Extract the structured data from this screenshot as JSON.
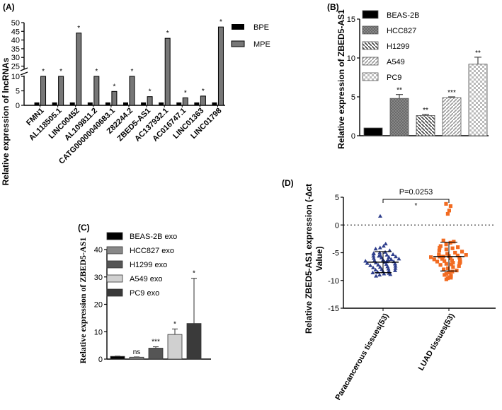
{
  "chart_data": [
    {
      "panel": "(A)",
      "type": "bar",
      "ylabel": "Relative expression of lncRNAs",
      "categories": [
        "FMN1",
        "AL118505.1",
        "LINC00452",
        "AL109811.2",
        "CATG00000040683.1",
        "Z82244.2",
        "ZBED5-AS1",
        "AC137932.1",
        "AC016747.1",
        "LINC01363",
        "LINC01798"
      ],
      "series": [
        {
          "name": "BPE",
          "values": [
            1,
            1,
            1,
            1,
            1,
            1,
            1,
            1,
            1,
            1,
            1
          ],
          "color": "#000000"
        },
        {
          "name": "MPE",
          "values": [
            10,
            10,
            44,
            10,
            4.8,
            10,
            3.0,
            41,
            2.6,
            3.2,
            47.5
          ],
          "color": "#777777"
        }
      ],
      "significance": [
        "*",
        "*",
        "*",
        "*",
        "*",
        "*",
        "*",
        "*",
        "*",
        "*",
        "*"
      ],
      "broken_axis": true,
      "lower_ticks": [
        "0",
        "5",
        "10"
      ],
      "upper_ticks": [
        "25",
        "30",
        "35",
        "40",
        "45",
        "50"
      ]
    },
    {
      "panel": "(B)",
      "type": "bar",
      "ylabel": "Relative expression of ZBED5-AS1",
      "categories": [
        "BEAS-2B",
        "HCC827",
        "H1299",
        "A549",
        "PC9"
      ],
      "values": [
        1.0,
        4.8,
        2.6,
        4.9,
        9.2
      ],
      "errors": [
        0.05,
        0.5,
        0.15,
        0.1,
        0.9
      ],
      "significance": [
        "",
        "**",
        "**",
        "***",
        "**"
      ],
      "ylim": [
        0,
        15
      ],
      "yticks": [
        "0",
        "5",
        "10",
        "15"
      ]
    },
    {
      "panel": "(C)",
      "type": "bar",
      "ylabel": "Relative expression of ZBED5-AS1",
      "categories": [
        "BEAS-2B exo",
        "HCC827 exo",
        "H1299 exo",
        "A549 exo",
        "PC9 exo"
      ],
      "values": [
        1.0,
        0.7,
        4.0,
        9.0,
        13.0
      ],
      "errors": [
        0.1,
        0.1,
        0.5,
        2.0,
        16.5
      ],
      "significance": [
        "",
        "ns",
        "***",
        "*",
        "*"
      ],
      "ylim": [
        0,
        40
      ],
      "yticks": [
        "0",
        "10",
        "20",
        "30",
        "40"
      ]
    },
    {
      "panel": "(D)",
      "type": "scatter",
      "ylabel_line1": "Relative ZBED5-AS1 expression (-∆ct",
      "ylabel_line2": "Value)",
      "categories": [
        "Paracancerous tissues(53)",
        "LUAD tissues(53)"
      ],
      "ylim": [
        -15,
        5
      ],
      "yticks": [
        "-15",
        "-10",
        "-5",
        "0",
        "5"
      ],
      "p_value": "P=0.0253",
      "sig": "*",
      "groups": [
        {
          "mean": -6.7,
          "sd": 1.9,
          "color": "#2e3e8c",
          "values": [
            1.6,
            -3.4,
            -3.8,
            -4.1,
            -4.3,
            -4.6,
            -4.9,
            -5.0,
            -5.2,
            -5.3,
            -5.4,
            -5.5,
            -5.6,
            -5.7,
            -5.8,
            -5.9,
            -6.0,
            -6.1,
            -6.2,
            -6.3,
            -6.4,
            -6.5,
            -6.6,
            -6.7,
            -6.8,
            -6.9,
            -7.0,
            -7.1,
            -7.2,
            -7.3,
            -7.4,
            -7.5,
            -7.6,
            -7.7,
            -7.8,
            -7.9,
            -8.0,
            -8.1,
            -8.2,
            -8.3,
            -8.4,
            -8.5,
            -8.6,
            -8.7,
            -8.8,
            -9.0,
            -9.2,
            -7.0,
            -6.6,
            -5.6,
            -5.1,
            -8.9,
            -6.3
          ]
        },
        {
          "mean": -5.7,
          "sd": 2.6,
          "color": "#f26b21",
          "values": [
            3.8,
            3.4,
            2.6,
            2.0,
            -2.8,
            -3.0,
            -3.2,
            -3.5,
            -3.8,
            -4.0,
            -4.2,
            -4.4,
            -4.6,
            -4.8,
            -5.0,
            -5.2,
            -5.3,
            -5.4,
            -5.5,
            -5.6,
            -5.7,
            -5.8,
            -5.9,
            -6.0,
            -6.1,
            -6.2,
            -6.3,
            -6.4,
            -6.5,
            -6.6,
            -6.7,
            -6.8,
            -7.0,
            -7.2,
            -7.4,
            -7.6,
            -7.8,
            -8.0,
            -8.2,
            -8.4,
            -8.6,
            -8.8,
            -9.0,
            -9.2,
            -9.4,
            -9.6,
            -9.8,
            -9.5,
            -7.1,
            -5.7,
            -4.1,
            -6.9,
            -8.5
          ]
        }
      ]
    }
  ]
}
